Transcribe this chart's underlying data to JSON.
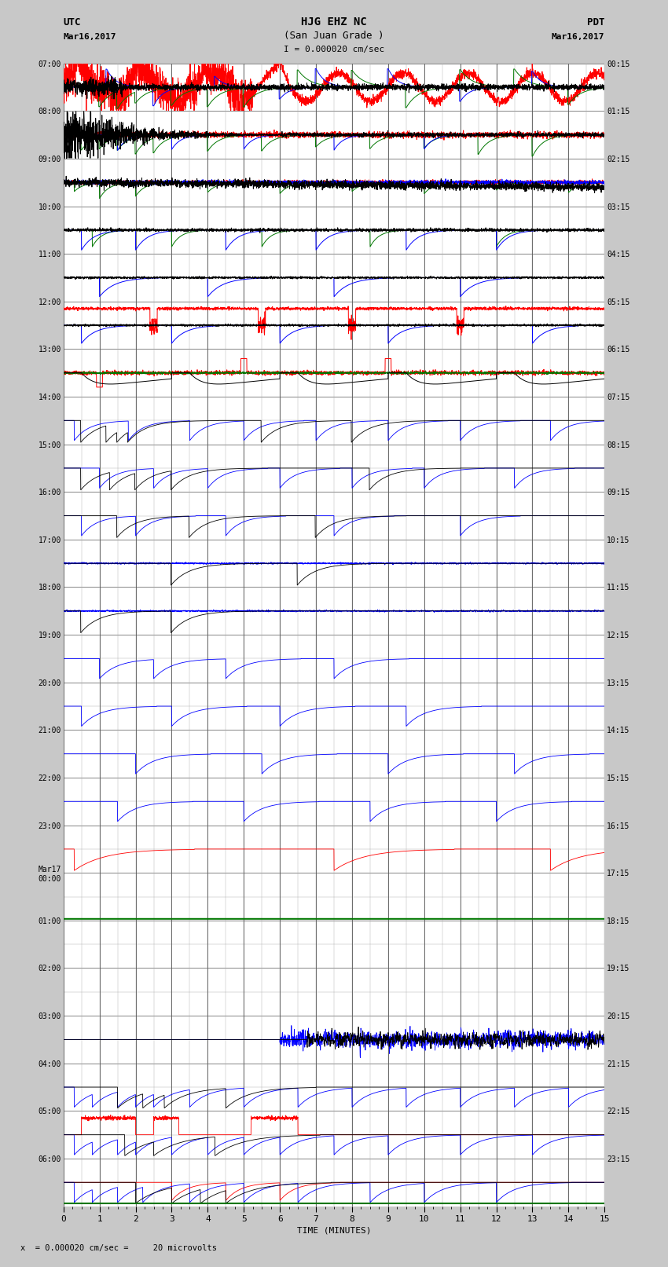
{
  "title_line1": "HJG EHZ NC",
  "title_line2": "(San Juan Grade )",
  "title_line3": "I = 0.000020 cm/sec",
  "label_utc": "UTC",
  "label_pdt": "PDT",
  "date_left": "Mar16,2017",
  "date_right": "Mar16,2017",
  "xlabel": "TIME (MINUTES)",
  "footer": "x  = 0.000020 cm/sec =     20 microvolts",
  "bg_color": "#c8c8c8",
  "plot_bg": "#ffffff",
  "time_min": 0,
  "time_max": 15,
  "n_traces": 24,
  "utc_labels": [
    "07:00",
    "08:00",
    "09:00",
    "10:00",
    "11:00",
    "12:00",
    "13:00",
    "14:00",
    "15:00",
    "16:00",
    "17:00",
    "18:00",
    "19:00",
    "20:00",
    "21:00",
    "22:00",
    "23:00",
    "Mar17\n00:00",
    "01:00",
    "02:00",
    "03:00",
    "04:00",
    "05:00",
    "06:00"
  ],
  "pdt_labels": [
    "00:15",
    "01:15",
    "02:15",
    "03:15",
    "04:15",
    "05:15",
    "06:15",
    "07:15",
    "08:15",
    "09:15",
    "10:15",
    "11:15",
    "12:15",
    "13:15",
    "14:15",
    "15:15",
    "16:15",
    "17:15",
    "18:15",
    "19:15",
    "20:15",
    "21:15",
    "22:15",
    "23:15"
  ],
  "col_red": "#ff0000",
  "col_green": "#007700",
  "col_blue": "#0000ff",
  "col_black": "#000000"
}
